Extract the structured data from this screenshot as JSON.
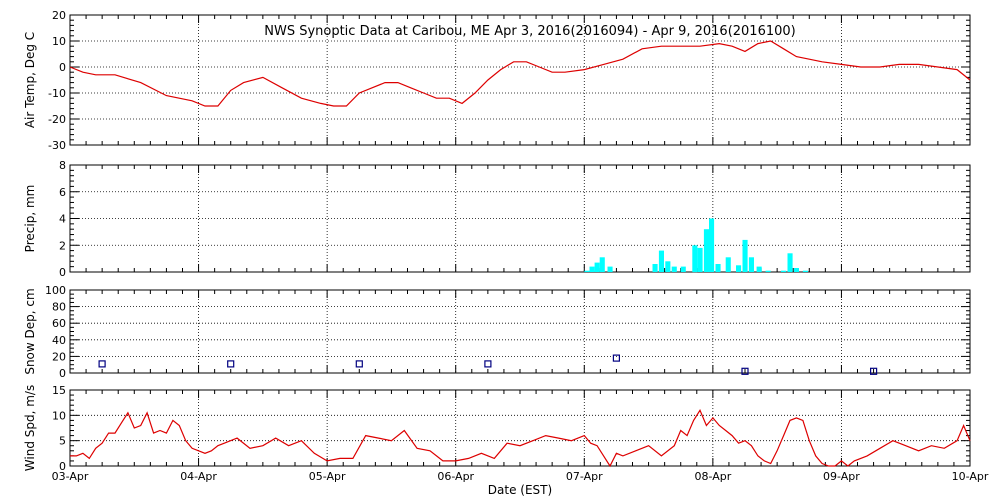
{
  "colors": {
    "air_temp_line": "#dd0000",
    "wind_speed_line": "#dd0000",
    "precip_bar": "#00ffff",
    "snow_marker": "#000080",
    "frame": "#000000"
  },
  "chart_data": {
    "title": "NWS Synoptic Data at Caribou, ME   Apr  3, 2016(2016094) - Apr  9, 2016(2016100)",
    "xlabel": "Date (EST)",
    "x_ticks": [
      "03-Apr",
      "04-Apr",
      "05-Apr",
      "06-Apr",
      "07-Apr",
      "08-Apr",
      "09-Apr",
      "10-Apr"
    ],
    "x_range_days": [
      0,
      7
    ],
    "grid": "vertical dotted at day boundaries, horizontal dotted at labeled y ticks",
    "panels": [
      {
        "id": "air-temp",
        "type": "line",
        "ylabel": "Air Temp, Deg C",
        "ylim": [
          -30,
          20
        ],
        "y_ticks": [
          20,
          10,
          0,
          -10,
          -20,
          -30
        ],
        "series": [
          {
            "x": [
              0,
              0.1,
              0.2,
              0.35,
              0.55,
              0.75,
              0.95,
              1.05,
              1.15,
              1.25,
              1.35,
              1.5,
              1.65,
              1.8,
              1.95,
              2.05,
              2.15,
              2.25,
              2.35,
              2.45,
              2.55,
              2.65,
              2.75,
              2.85,
              2.95,
              3.05,
              3.15,
              3.25,
              3.35,
              3.45,
              3.55,
              3.65,
              3.75,
              3.85,
              4.0,
              4.15,
              4.3,
              4.45,
              4.6,
              4.75,
              4.9,
              5.05,
              5.15,
              5.25,
              5.35,
              5.45,
              5.55,
              5.65,
              5.75,
              5.85,
              6.0,
              6.15,
              6.3,
              6.45,
              6.6,
              6.75,
              6.9,
              7.0
            ],
            "y": [
              0,
              -2,
              -3,
              -3,
              -6,
              -11,
              -13,
              -15,
              -15,
              -9,
              -6,
              -4,
              -8,
              -12,
              -14,
              -15,
              -15,
              -10,
              -8,
              -6,
              -6,
              -8,
              -10,
              -12,
              -12,
              -14,
              -10,
              -5,
              -1,
              2,
              2,
              0,
              -2,
              -2,
              -1,
              1,
              3,
              7,
              8,
              8,
              8,
              9,
              8,
              6,
              9,
              10,
              7,
              4,
              3,
              2,
              1,
              0,
              0,
              1,
              1,
              0,
              -1,
              -5
            ]
          }
        ]
      },
      {
        "id": "precip",
        "type": "bar",
        "ylabel": "Precip, mm",
        "ylim": [
          0,
          8
        ],
        "y_ticks": [
          8,
          6,
          4,
          2,
          0
        ],
        "bars": [
          {
            "x": 4.02,
            "value": 0.1
          },
          {
            "x": 4.06,
            "value": 0.4
          },
          {
            "x": 4.1,
            "value": 0.7
          },
          {
            "x": 4.14,
            "value": 1.1
          },
          {
            "x": 4.2,
            "value": 0.4
          },
          {
            "x": 4.55,
            "value": 0.6
          },
          {
            "x": 4.6,
            "value": 1.6
          },
          {
            "x": 4.65,
            "value": 0.8
          },
          {
            "x": 4.7,
            "value": 0.4
          },
          {
            "x": 4.77,
            "value": 0.4
          },
          {
            "x": 4.86,
            "value": 2.0
          },
          {
            "x": 4.9,
            "value": 1.8
          },
          {
            "x": 4.95,
            "value": 3.2
          },
          {
            "x": 4.99,
            "value": 4.0
          },
          {
            "x": 5.04,
            "value": 0.6
          },
          {
            "x": 5.12,
            "value": 1.1
          },
          {
            "x": 5.2,
            "value": 0.5
          },
          {
            "x": 5.25,
            "value": 2.4
          },
          {
            "x": 5.3,
            "value": 1.1
          },
          {
            "x": 5.36,
            "value": 0.4
          },
          {
            "x": 5.43,
            "value": 0.1
          },
          {
            "x": 5.55,
            "value": 0.1
          },
          {
            "x": 5.6,
            "value": 1.4
          },
          {
            "x": 5.65,
            "value": 0.3
          },
          {
            "x": 5.72,
            "value": 0.1
          }
        ]
      },
      {
        "id": "snow-depth",
        "type": "scatter",
        "ylabel": "Snow Dep, cm",
        "ylim": [
          0,
          100
        ],
        "y_ticks": [
          100,
          80,
          60,
          40,
          20,
          0
        ],
        "points": [
          {
            "x": 0.25,
            "y": 11
          },
          {
            "x": 1.25,
            "y": 11
          },
          {
            "x": 2.25,
            "y": 11
          },
          {
            "x": 3.25,
            "y": 11
          },
          {
            "x": 4.25,
            "y": 18
          },
          {
            "x": 5.25,
            "y": 2
          },
          {
            "x": 6.25,
            "y": 2
          }
        ]
      },
      {
        "id": "wind-speed",
        "type": "line",
        "ylabel": "Wind Spd, m/s",
        "ylim": [
          0,
          15
        ],
        "y_ticks": [
          15,
          10,
          5,
          0
        ],
        "series": [
          {
            "x": [
              0,
              0.05,
              0.1,
              0.15,
              0.2,
              0.25,
              0.3,
              0.35,
              0.4,
              0.45,
              0.5,
              0.55,
              0.6,
              0.65,
              0.7,
              0.75,
              0.8,
              0.85,
              0.9,
              0.95,
              1.0,
              1.05,
              1.1,
              1.15,
              1.2,
              1.3,
              1.4,
              1.5,
              1.6,
              1.7,
              1.8,
              1.9,
              2.0,
              2.1,
              2.2,
              2.3,
              2.4,
              2.5,
              2.6,
              2.7,
              2.8,
              2.9,
              3.0,
              3.1,
              3.2,
              3.3,
              3.4,
              3.5,
              3.6,
              3.7,
              3.8,
              3.9,
              4.0,
              4.05,
              4.1,
              4.15,
              4.2,
              4.25,
              4.3,
              4.4,
              4.5,
              4.6,
              4.7,
              4.75,
              4.8,
              4.85,
              4.9,
              4.95,
              5.0,
              5.05,
              5.1,
              5.15,
              5.2,
              5.25,
              5.3,
              5.35,
              5.4,
              5.45,
              5.5,
              5.55,
              5.6,
              5.65,
              5.7,
              5.75,
              5.8,
              5.85,
              5.9,
              5.95,
              6.0,
              6.05,
              6.1,
              6.2,
              6.3,
              6.4,
              6.5,
              6.6,
              6.7,
              6.8,
              6.9,
              6.95,
              7.0
            ],
            "y": [
              2,
              2,
              2.5,
              1.5,
              3.5,
              4.5,
              6.5,
              6.5,
              8.5,
              10.5,
              7.5,
              8,
              10.5,
              6.5,
              7,
              6.5,
              9,
              8,
              5,
              3.5,
              3,
              2.5,
              3,
              4,
              4.5,
              5.5,
              3.5,
              4,
              5.5,
              4,
              5,
              2.5,
              1,
              1.5,
              1.5,
              6,
              5.5,
              5,
              7,
              3.5,
              3,
              1,
              1,
              1.5,
              2.5,
              1.5,
              4.5,
              4,
              5,
              6,
              5.5,
              5,
              6,
              4.5,
              4,
              2,
              0,
              2.5,
              2,
              3,
              4,
              2,
              4,
              7,
              6,
              9,
              11,
              8,
              9.5,
              8,
              7,
              6,
              4.5,
              5,
              4,
              2,
              1,
              0.5,
              3,
              6,
              9,
              9.5,
              9,
              5,
              2,
              0.5,
              0,
              0,
              1,
              0,
              1,
              2,
              3.5,
              5,
              4,
              3,
              4,
              3.5,
              5,
              8,
              5
            ]
          }
        ]
      }
    ]
  }
}
